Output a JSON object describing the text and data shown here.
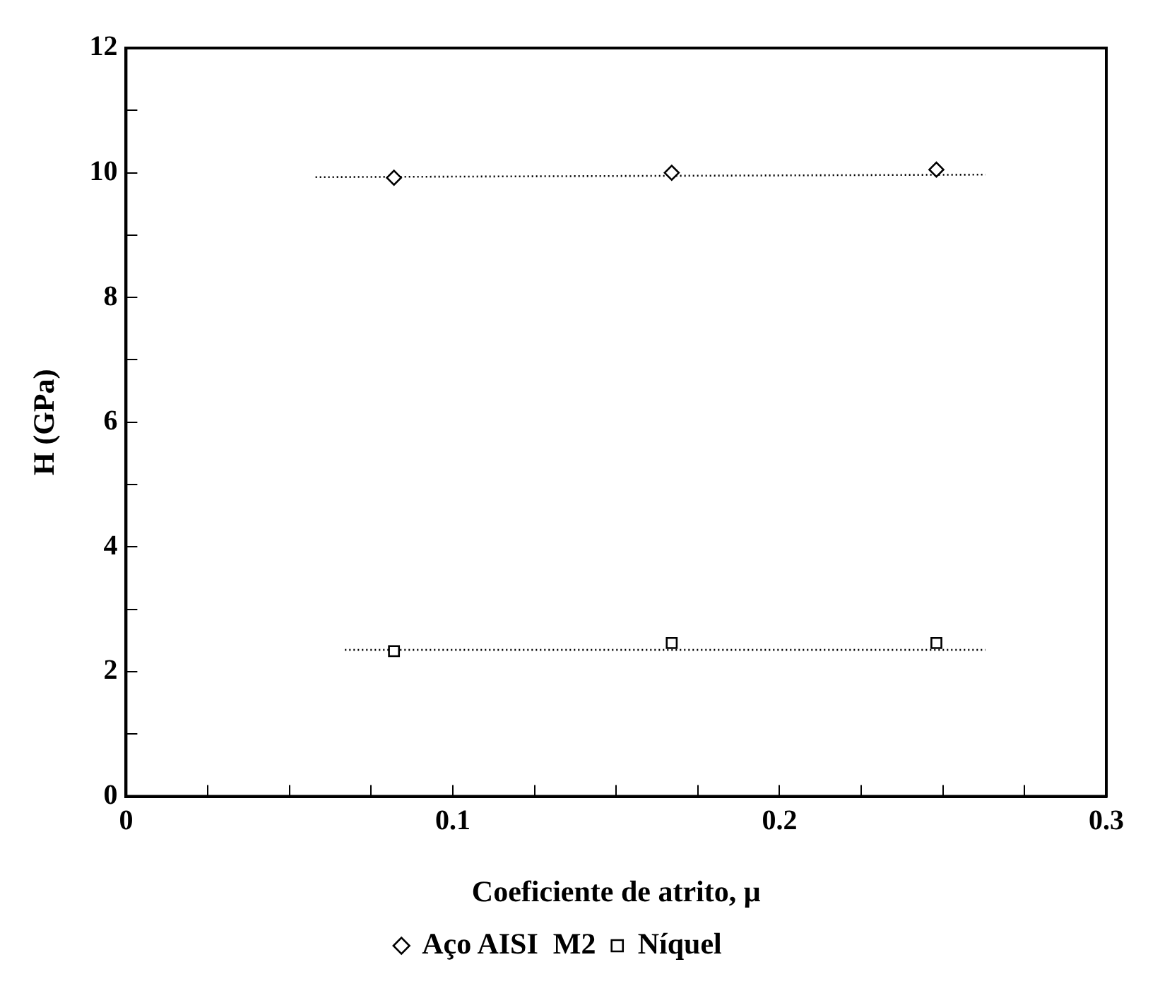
{
  "chart_data": {
    "type": "scatter",
    "xlabel": "Coeficiente de atrito, μ",
    "ylabel": "H (GPa)",
    "series": [
      {
        "name": "Aço AISI  M2",
        "color": "#000000",
        "marker": "diamond",
        "x": [
          0.082,
          0.167,
          0.248
        ],
        "values": [
          9.92,
          10.0,
          10.05
        ]
      },
      {
        "name": "Níquel",
        "color": "#000000",
        "marker": "square",
        "x": [
          0.082,
          0.167,
          0.248
        ],
        "values": [
          2.33,
          2.46,
          2.46
        ]
      },
      {
        "type": "line",
        "color": "#000000",
        "marker": "none",
        "line_style": "dotted",
        "x": [
          0.058,
          0.263
        ],
        "values": [
          9.93,
          9.97
        ]
      },
      {
        "type": "line",
        "color": "#000000",
        "marker": "none",
        "line_style": "dotted",
        "x": [
          0.067,
          0.263
        ],
        "values": [
          2.35,
          2.35
        ]
      }
    ],
    "xlim": [
      0,
      0.3
    ],
    "xticks": [
      0,
      {
        "value": 0.025,
        "label": null
      },
      {
        "value": 0.05,
        "label": null
      },
      {
        "value": 0.075,
        "label": null
      },
      0.1,
      {
        "value": 0.125,
        "label": null
      },
      {
        "value": 0.15,
        "label": null
      },
      {
        "value": 0.175,
        "label": null
      },
      0.2,
      {
        "value": 0.225,
        "label": null
      },
      {
        "value": 0.25,
        "label": null
      },
      {
        "value": 0.275,
        "label": null
      },
      0.3
    ],
    "ylim": [
      0,
      12
    ],
    "yticks": [
      0,
      {
        "value": 1,
        "label": null
      },
      2,
      {
        "value": 3,
        "label": null
      },
      4,
      {
        "value": 5,
        "label": null
      },
      6,
      {
        "value": 7,
        "label": null
      },
      8,
      {
        "value": 9,
        "label": null
      },
      10,
      {
        "value": 11,
        "label": null
      },
      12
    ],
    "grid": false,
    "legend": "bottom"
  }
}
